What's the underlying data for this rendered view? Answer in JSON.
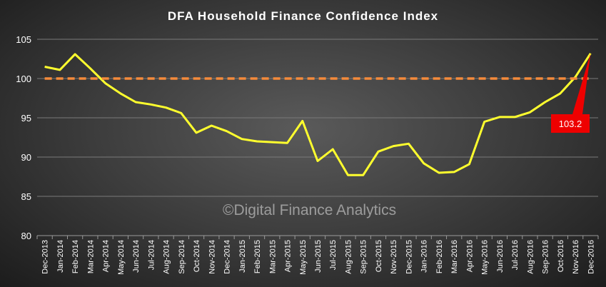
{
  "chart_data": {
    "type": "line",
    "title": "DFA Household Finance Confidence Index",
    "categories": [
      "Dec-2013",
      "Jan-2014",
      "Feb-2014",
      "Mar-2014",
      "Apr-2014",
      "May-2014",
      "Jun-2014",
      "Jul-2014",
      "Aug-2014",
      "Sep-2014",
      "Oct-2014",
      "Nov-2014",
      "Dec-2014",
      "Jan-2015",
      "Feb-2015",
      "Mar-2015",
      "Apr-2015",
      "May-2015",
      "Jun-2015",
      "Jul-2015",
      "Aug-2015",
      "Sep-2015",
      "Oct-2015",
      "Nov-2015",
      "Dec-2015",
      "Jan-2016",
      "Feb-2016",
      "Mar-2016",
      "Apr-2016",
      "May-2016",
      "Jun-2016",
      "Jul-2016",
      "Aug-2016",
      "Sep-2016",
      "Oct-2016",
      "Nov-2016",
      "Dec-2016"
    ],
    "series": [
      {
        "values": [
          101.5,
          101.1,
          103.1,
          101.3,
          99.4,
          98.1,
          97.0,
          96.7,
          96.3,
          95.6,
          93.1,
          94.0,
          93.3,
          92.3,
          92.0,
          91.9,
          91.8,
          94.6,
          89.5,
          91.0,
          87.7,
          87.7,
          90.7,
          91.4,
          91.7,
          89.2,
          88.0,
          88.1,
          89.1,
          94.5,
          95.1,
          95.1,
          95.7,
          97.0,
          98.1,
          100.2,
          103.2
        ],
        "color": "#ffff2e"
      },
      {
        "values": [
          100,
          100,
          100,
          100,
          100,
          100,
          100,
          100,
          100,
          100,
          100,
          100,
          100,
          100,
          100,
          100,
          100,
          100,
          100,
          100,
          100,
          100,
          100,
          100,
          100,
          100,
          100,
          100,
          100,
          100,
          100,
          100,
          100,
          100,
          100,
          100,
          100
        ],
        "color": "#f58a3a",
        "style": "dashed"
      }
    ],
    "yticks": [
      "80",
      "85",
      "90",
      "95",
      "100",
      "105"
    ],
    "ylim": [
      80,
      105
    ],
    "annotation": {
      "label": "103.2",
      "index": 36,
      "value": 103.2,
      "color": "#ee0000"
    },
    "watermark": "©Digital Finance Analytics",
    "grid": true
  }
}
